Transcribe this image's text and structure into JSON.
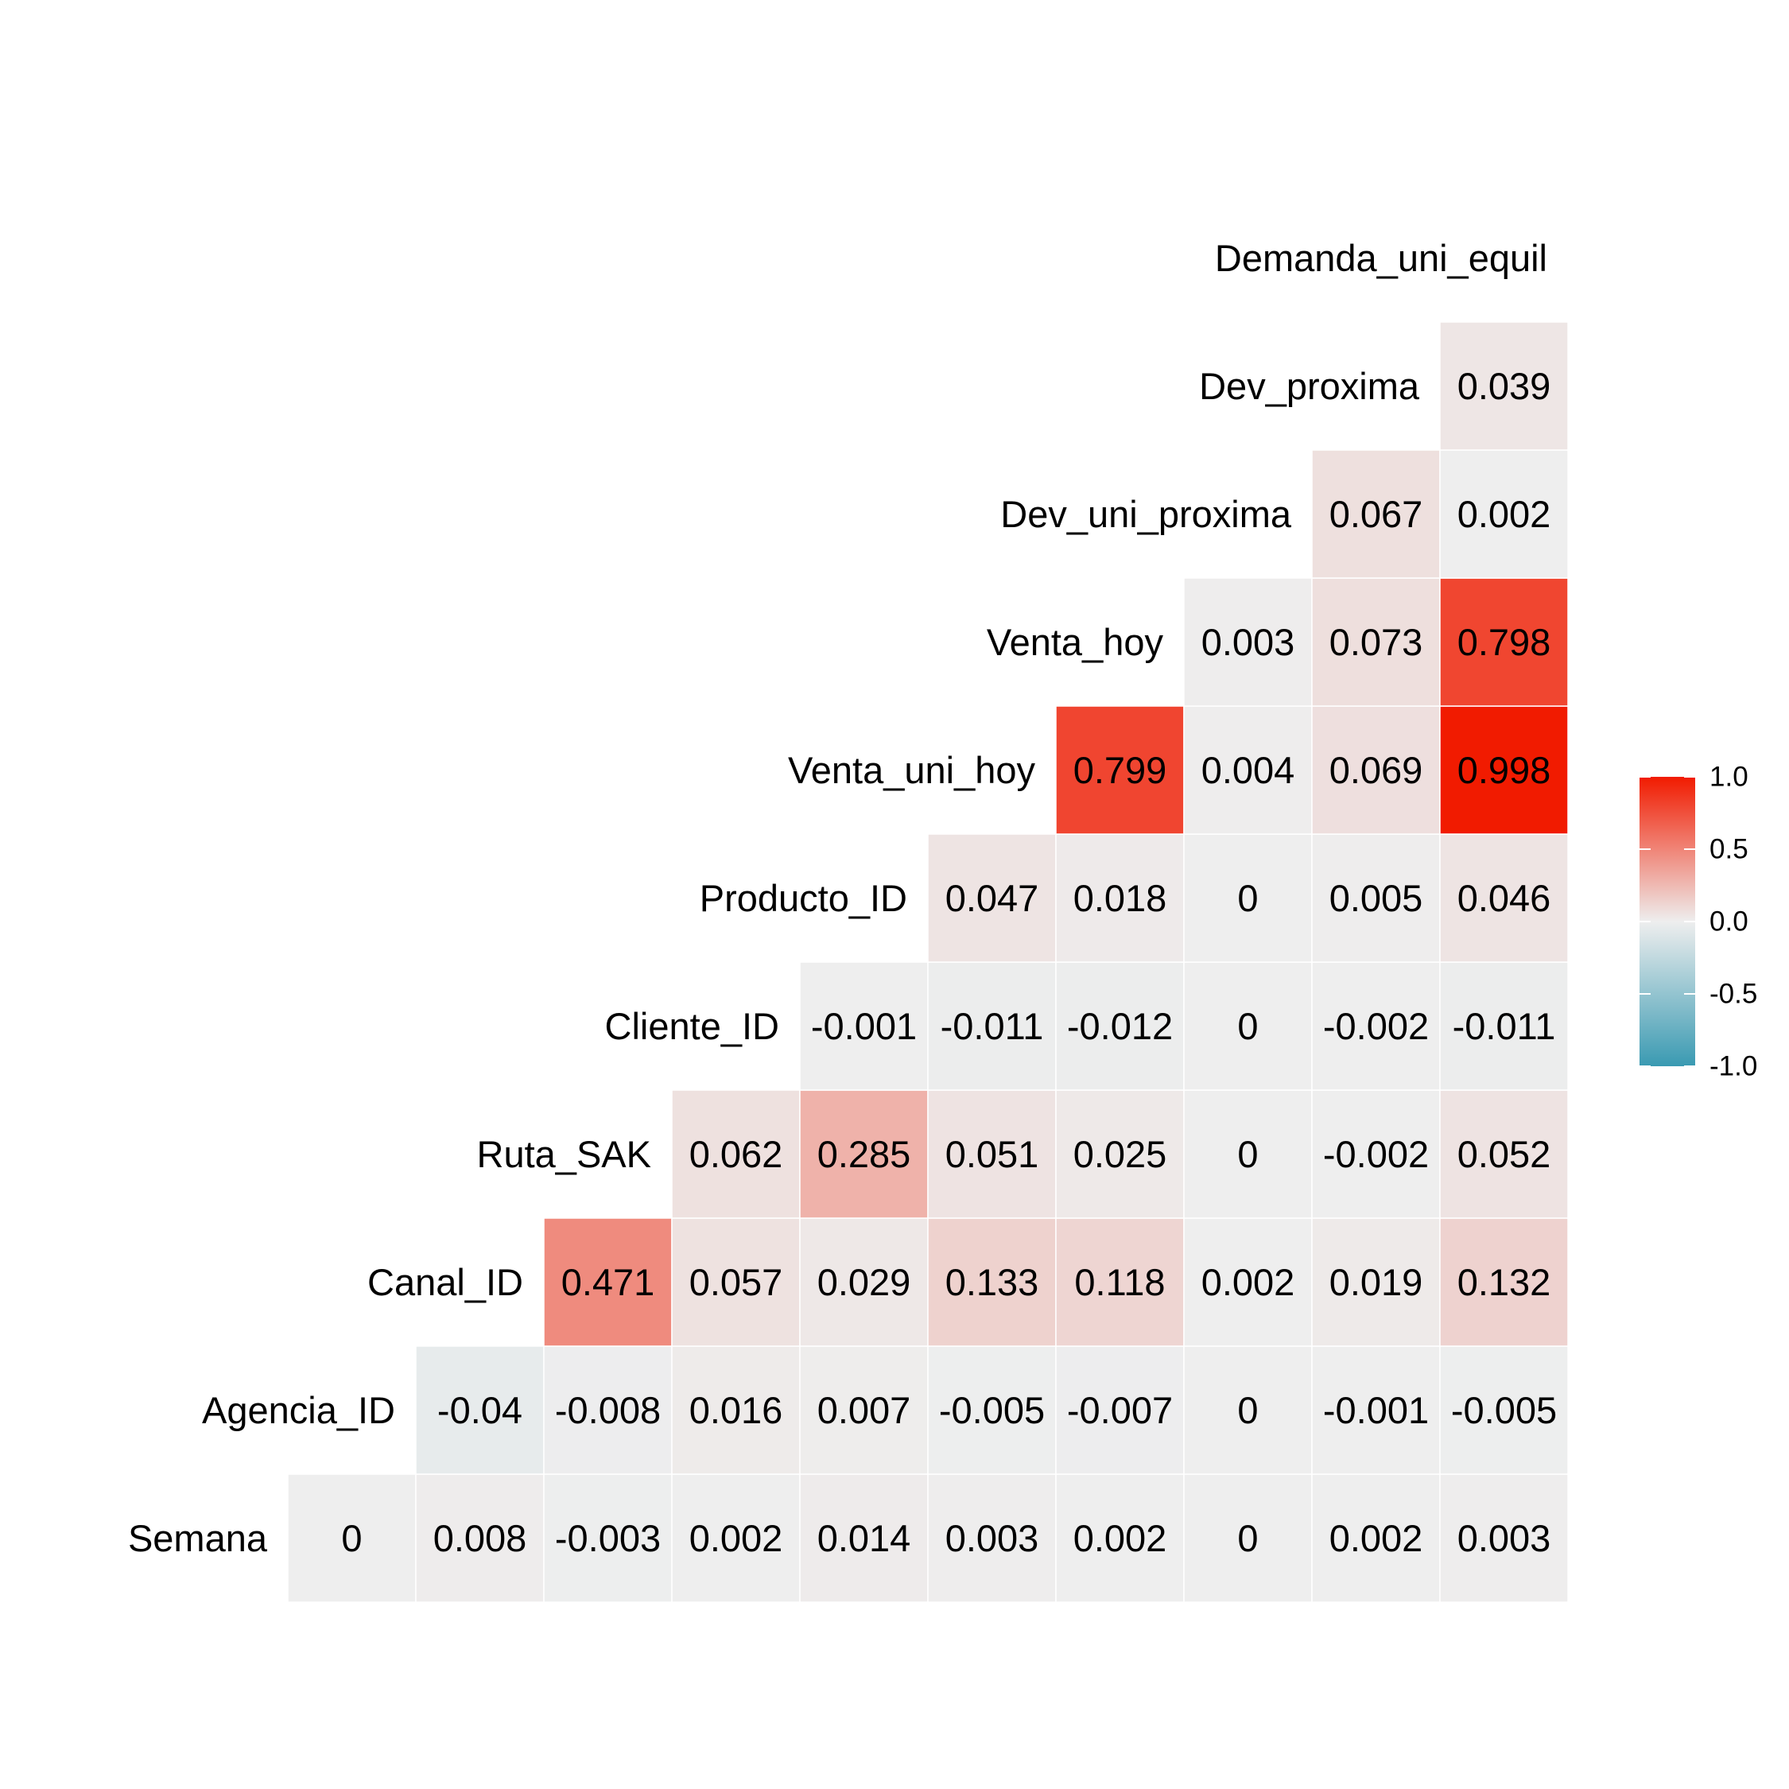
{
  "chart_data": {
    "type": "heatmap",
    "subtype": "lower-triangular correlation matrix",
    "variables": [
      "Semana",
      "Agencia_ID",
      "Canal_ID",
      "Ruta_SAK",
      "Cliente_ID",
      "Producto_ID",
      "Venta_uni_hoy",
      "Venta_hoy",
      "Dev_uni_proxima",
      "Dev_proxima",
      "Demanda_uni_equil"
    ],
    "columns": [
      "Semana",
      "Agencia_ID",
      "Canal_ID",
      "Ruta_SAK",
      "Cliente_ID",
      "Producto_ID",
      "Venta_uni_hoy",
      "Venta_hoy",
      "Dev_uni_proxima",
      "Dev_proxima"
    ],
    "rows": [
      {
        "label": "Semana",
        "cells": [
          {
            "text": "0",
            "value": 0
          },
          {
            "text": "0.008",
            "value": 0.008
          },
          {
            "text": "-0.003",
            "value": -0.003
          },
          {
            "text": "0.002",
            "value": 0.002
          },
          {
            "text": "0.014",
            "value": 0.014
          },
          {
            "text": "0.003",
            "value": 0.003
          },
          {
            "text": "0.002",
            "value": 0.002
          },
          {
            "text": "0",
            "value": 0
          },
          {
            "text": "0.002",
            "value": 0.002
          },
          {
            "text": "0.003",
            "value": 0.003
          }
        ]
      },
      {
        "label": "Agencia_ID",
        "cells": [
          {
            "text": "-0.04",
            "value": -0.04
          },
          {
            "text": "-0.008",
            "value": -0.008
          },
          {
            "text": "0.016",
            "value": 0.016
          },
          {
            "text": "0.007",
            "value": 0.007
          },
          {
            "text": "-0.005",
            "value": -0.005
          },
          {
            "text": "-0.007",
            "value": -0.007
          },
          {
            "text": "0",
            "value": 0
          },
          {
            "text": "-0.001",
            "value": -0.001
          },
          {
            "text": "-0.005",
            "value": -0.005
          }
        ]
      },
      {
        "label": "Canal_ID",
        "cells": [
          {
            "text": "0.471",
            "value": 0.471
          },
          {
            "text": "0.057",
            "value": 0.057
          },
          {
            "text": "0.029",
            "value": 0.029
          },
          {
            "text": "0.133",
            "value": 0.133
          },
          {
            "text": "0.118",
            "value": 0.118
          },
          {
            "text": "0.002",
            "value": 0.002
          },
          {
            "text": "0.019",
            "value": 0.019
          },
          {
            "text": "0.132",
            "value": 0.132
          }
        ]
      },
      {
        "label": "Ruta_SAK",
        "cells": [
          {
            "text": "0.062",
            "value": 0.062
          },
          {
            "text": "0.285",
            "value": 0.285
          },
          {
            "text": "0.051",
            "value": 0.051
          },
          {
            "text": "0.025",
            "value": 0.025
          },
          {
            "text": "0",
            "value": 0
          },
          {
            "text": "-0.002",
            "value": -0.002
          },
          {
            "text": "0.052",
            "value": 0.052
          }
        ]
      },
      {
        "label": "Cliente_ID",
        "cells": [
          {
            "text": "-0.001",
            "value": -0.001
          },
          {
            "text": "-0.011",
            "value": -0.011
          },
          {
            "text": "-0.012",
            "value": -0.012
          },
          {
            "text": "0",
            "value": 0
          },
          {
            "text": "-0.002",
            "value": -0.002
          },
          {
            "text": "-0.011",
            "value": -0.011
          }
        ]
      },
      {
        "label": "Producto_ID",
        "cells": [
          {
            "text": "0.047",
            "value": 0.047
          },
          {
            "text": "0.018",
            "value": 0.018
          },
          {
            "text": "0",
            "value": 0
          },
          {
            "text": "0.005",
            "value": 0.005
          },
          {
            "text": "0.046",
            "value": 0.046
          }
        ]
      },
      {
        "label": "Venta_uni_hoy",
        "cells": [
          {
            "text": "0.799",
            "value": 0.799
          },
          {
            "text": "0.004",
            "value": 0.004
          },
          {
            "text": "0.069",
            "value": 0.069
          },
          {
            "text": "0.998",
            "value": 0.998
          }
        ]
      },
      {
        "label": "Venta_hoy",
        "cells": [
          {
            "text": "0.003",
            "value": 0.003
          },
          {
            "text": "0.073",
            "value": 0.073
          },
          {
            "text": "0.798",
            "value": 0.798
          }
        ]
      },
      {
        "label": "Dev_uni_proxima",
        "cells": [
          {
            "text": "0.067",
            "value": 0.067
          },
          {
            "text": "0.002",
            "value": 0.002
          }
        ]
      },
      {
        "label": "Dev_proxima",
        "cells": [
          {
            "text": "0.039",
            "value": 0.039
          }
        ]
      },
      {
        "label": "Demanda_uni_equil",
        "cells": []
      }
    ],
    "legend": {
      "ticks": [
        "1.0",
        "0.5",
        "0.0",
        "-0.5",
        "-1.0"
      ],
      "tick_values": [
        1.0,
        0.5,
        0.0,
        -0.5,
        -1.0
      ],
      "range": [
        -1,
        1
      ],
      "colors": {
        "low": "#3A9AB2",
        "mid": "#EEEEEE",
        "high": "#F11B00"
      },
      "placement": "right"
    },
    "grid": false
  }
}
